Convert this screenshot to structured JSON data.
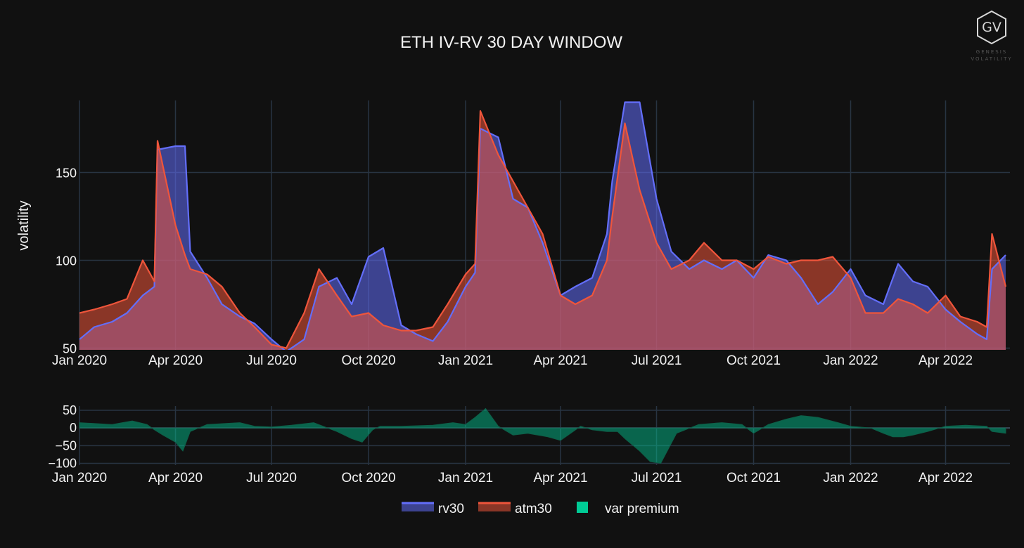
{
  "logo": {
    "mark": "GV",
    "line1": "GENESIS",
    "line2": "VOLATILITY"
  },
  "colors": {
    "background": "#111111",
    "grid": "#283442",
    "rv30": "#636efa",
    "atm30": "#ef553b",
    "var_premium": "#00cc96",
    "text": "#f2f2f2"
  },
  "chart_data": [
    {
      "type": "area",
      "title": "ETH IV-RV 30 DAY WINDOW",
      "xlabel": "",
      "ylabel": "volatility",
      "x_range": [
        "2020-01-01",
        "2022-06-01"
      ],
      "ylim": [
        49,
        191
      ],
      "y_ticks": [
        50,
        100,
        150
      ],
      "x_ticks": [
        {
          "date": "2020-01-01",
          "label": "Jan 2020"
        },
        {
          "date": "2020-04-01",
          "label": "Apr 2020"
        },
        {
          "date": "2020-07-01",
          "label": "Jul 2020"
        },
        {
          "date": "2020-10-01",
          "label": "Oct 2020"
        },
        {
          "date": "2021-01-01",
          "label": "Jan 2021"
        },
        {
          "date": "2021-04-01",
          "label": "Apr 2021"
        },
        {
          "date": "2021-07-01",
          "label": "Jul 2021"
        },
        {
          "date": "2021-10-01",
          "label": "Oct 2021"
        },
        {
          "date": "2022-01-01",
          "label": "Jan 2022"
        },
        {
          "date": "2022-04-01",
          "label": "Apr 2022"
        }
      ],
      "grid": true,
      "dates": [
        "2020-01-01",
        "2020-01-15",
        "2020-02-01",
        "2020-02-15",
        "2020-03-01",
        "2020-03-12",
        "2020-03-15",
        "2020-04-01",
        "2020-04-10",
        "2020-04-15",
        "2020-05-01",
        "2020-05-15",
        "2020-06-01",
        "2020-06-15",
        "2020-07-01",
        "2020-07-15",
        "2020-08-01",
        "2020-08-15",
        "2020-09-01",
        "2020-09-15",
        "2020-10-01",
        "2020-10-15",
        "2020-11-01",
        "2020-11-15",
        "2020-12-01",
        "2020-12-15",
        "2021-01-01",
        "2021-01-10",
        "2021-01-15",
        "2021-02-01",
        "2021-02-15",
        "2021-03-01",
        "2021-03-15",
        "2021-04-01",
        "2021-04-15",
        "2021-05-01",
        "2021-05-15",
        "2021-05-20",
        "2021-06-01",
        "2021-06-15",
        "2021-07-01",
        "2021-07-15",
        "2021-08-01",
        "2021-08-15",
        "2021-09-01",
        "2021-09-15",
        "2021-10-01",
        "2021-10-15",
        "2021-11-01",
        "2021-11-15",
        "2021-12-01",
        "2021-12-15",
        "2022-01-01",
        "2022-01-15",
        "2022-02-01",
        "2022-02-15",
        "2022-03-01",
        "2022-03-15",
        "2022-04-01",
        "2022-04-15",
        "2022-05-01",
        "2022-05-10",
        "2022-05-15",
        "2022-05-28"
      ],
      "series": [
        {
          "name": "rv30",
          "values": [
            55,
            62,
            65,
            70,
            80,
            85,
            163,
            165,
            165,
            105,
            90,
            75,
            68,
            64,
            55,
            48,
            55,
            85,
            90,
            75,
            102,
            107,
            63,
            58,
            54,
            65,
            85,
            93,
            175,
            170,
            135,
            130,
            110,
            80,
            85,
            90,
            115,
            145,
            190,
            190,
            135,
            105,
            95,
            100,
            95,
            100,
            90,
            103,
            100,
            90,
            75,
            82,
            95,
            80,
            75,
            98,
            88,
            85,
            72,
            65,
            58,
            55,
            95,
            103
          ]
        },
        {
          "name": "atm30",
          "values": [
            70,
            72,
            75,
            78,
            100,
            88,
            168,
            120,
            103,
            95,
            92,
            85,
            70,
            62,
            52,
            50,
            70,
            95,
            80,
            68,
            70,
            63,
            60,
            60,
            62,
            75,
            92,
            98,
            185,
            160,
            145,
            130,
            115,
            80,
            75,
            80,
            100,
            125,
            178,
            140,
            110,
            95,
            100,
            110,
            100,
            100,
            95,
            102,
            98,
            100,
            100,
            102,
            90,
            70,
            70,
            78,
            75,
            70,
            80,
            68,
            65,
            62,
            115,
            85
          ]
        }
      ]
    },
    {
      "type": "area",
      "title": "",
      "xlabel": "",
      "ylabel": "",
      "ylim": [
        -105,
        62
      ],
      "y_ticks": [
        50,
        0,
        -50,
        -100
      ],
      "y_tick_labels": [
        "50",
        "0",
        "−50",
        "−100"
      ],
      "x_range": [
        "2020-01-01",
        "2022-06-01"
      ],
      "grid": true,
      "dates": [
        "2020-01-01",
        "2020-02-01",
        "2020-02-20",
        "2020-03-05",
        "2020-03-12",
        "2020-03-20",
        "2020-04-01",
        "2020-04-08",
        "2020-04-15",
        "2020-05-01",
        "2020-06-01",
        "2020-06-15",
        "2020-07-01",
        "2020-07-20",
        "2020-08-10",
        "2020-09-01",
        "2020-09-15",
        "2020-09-25",
        "2020-10-05",
        "2020-10-12",
        "2020-11-01",
        "2020-12-01",
        "2020-12-20",
        "2021-01-01",
        "2021-01-10",
        "2021-01-20",
        "2021-02-01",
        "2021-02-15",
        "2021-03-01",
        "2021-03-20",
        "2021-04-01",
        "2021-04-20",
        "2021-05-01",
        "2021-05-15",
        "2021-05-25",
        "2021-06-01",
        "2021-06-15",
        "2021-06-25",
        "2021-07-05",
        "2021-07-20",
        "2021-08-10",
        "2021-09-01",
        "2021-09-20",
        "2021-10-01",
        "2021-10-15",
        "2021-11-01",
        "2021-11-15",
        "2021-12-01",
        "2021-12-20",
        "2022-01-01",
        "2022-01-20",
        "2022-02-01",
        "2022-02-10",
        "2022-02-20",
        "2022-03-01",
        "2022-03-15",
        "2022-04-01",
        "2022-04-20",
        "2022-05-10",
        "2022-05-15",
        "2022-05-28"
      ],
      "series": [
        {
          "name": "var premium",
          "values": [
            15,
            10,
            20,
            10,
            -5,
            -20,
            -40,
            -65,
            -10,
            10,
            15,
            5,
            3,
            8,
            15,
            -10,
            -30,
            -40,
            -5,
            5,
            5,
            8,
            15,
            10,
            30,
            55,
            5,
            -20,
            -15,
            -25,
            -35,
            5,
            -5,
            -10,
            -10,
            -30,
            -65,
            -95,
            -100,
            -15,
            10,
            15,
            10,
            -15,
            10,
            25,
            35,
            30,
            15,
            5,
            0,
            -15,
            -25,
            -25,
            -20,
            -10,
            5,
            8,
            5,
            -10,
            -15
          ]
        }
      ]
    }
  ],
  "legend": {
    "placement": "bottom-center",
    "items": [
      {
        "label": "rv30",
        "color": "#636efa",
        "kind": "area"
      },
      {
        "label": "atm30",
        "color": "#ef553b",
        "kind": "area"
      },
      {
        "label": "var premium",
        "color": "#00cc96",
        "kind": "bar"
      }
    ]
  }
}
